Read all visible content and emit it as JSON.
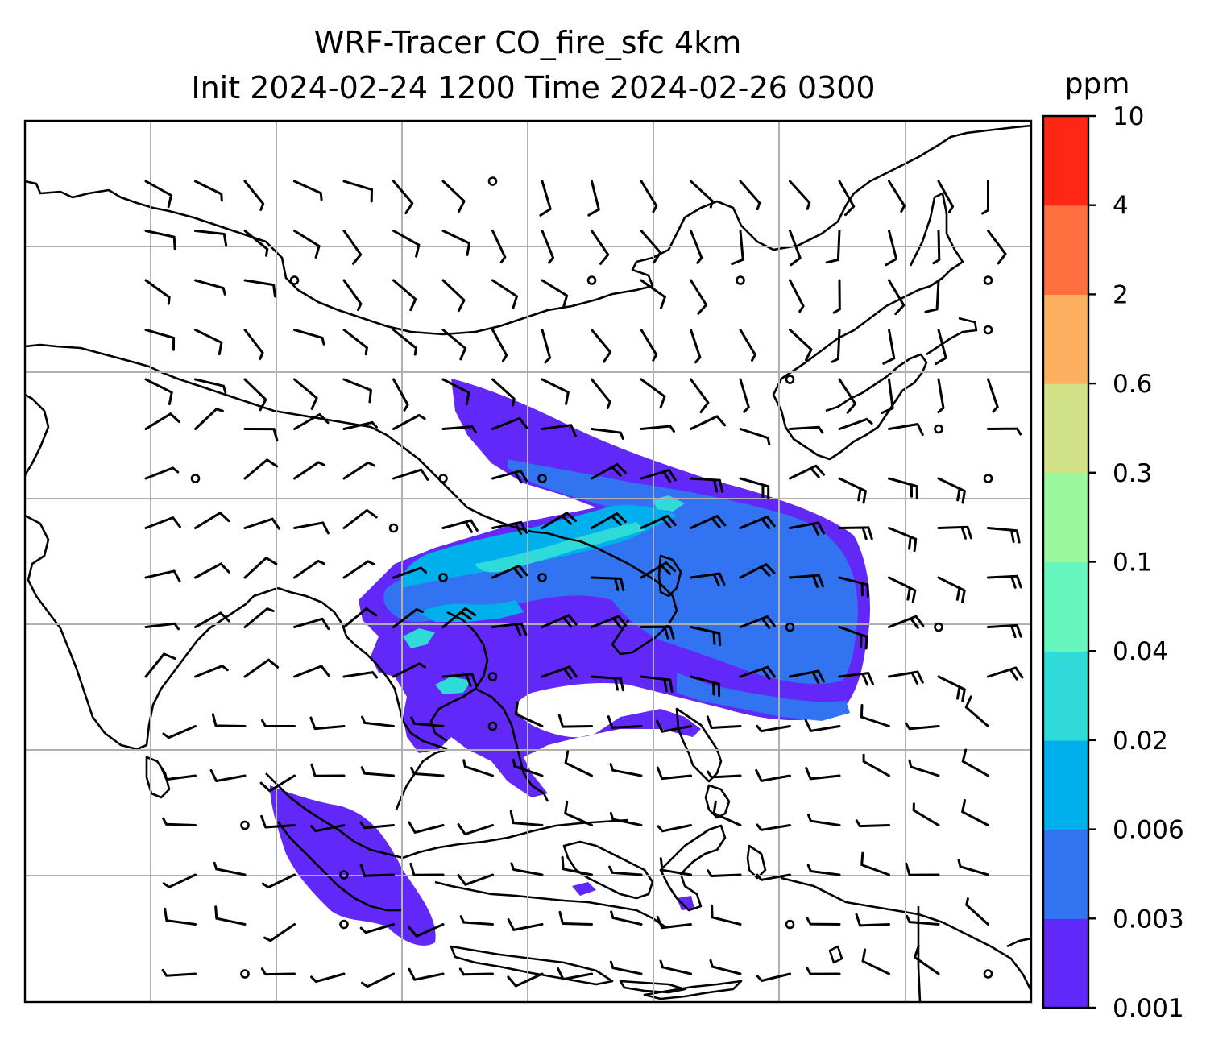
{
  "title": {
    "line1": "WRF-Tracer CO_fire_sfc 4km",
    "line2": "Init 2024-02-24 1200 Time 2024-02-26 0300"
  },
  "colorbar": {
    "unit": "ppm",
    "levels": [
      "0.001",
      "0.003",
      "0.006",
      "0.02",
      "0.04",
      "0.1",
      "0.3",
      "0.6",
      "2",
      "4",
      "10"
    ],
    "colors": [
      "#6128f7",
      "#3273f2",
      "#00b0ec",
      "#2edbd8",
      "#66f7bd",
      "#99f79c",
      "#d0e187",
      "#fdb060",
      "#ff7041",
      "#fe2716"
    ]
  },
  "map": {
    "background": "#ffffff",
    "coastline_color": "#000000",
    "gridline_color": "#b0b0b0",
    "grid": true,
    "wind_barbs": true,
    "calm_circles": true
  }
}
